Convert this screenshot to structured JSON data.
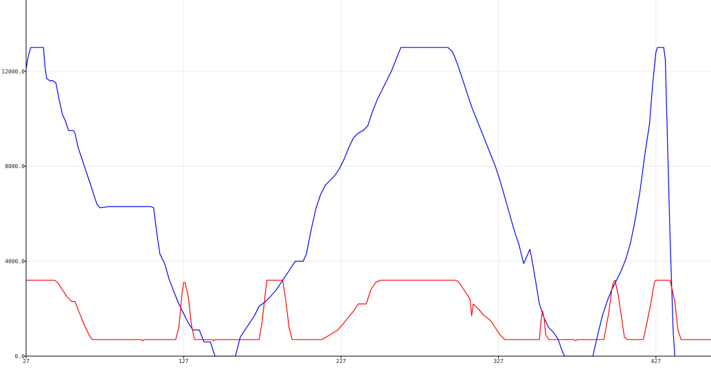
{
  "app": {
    "background": "#ffffff",
    "axis_color": "#000000",
    "grid_color": "#ececec"
  },
  "chart_data": {
    "type": "line",
    "title": "",
    "xlabel": "",
    "ylabel": "",
    "grid": true,
    "legend": "none",
    "xlim": [
      27,
      462
    ],
    "ylim": [
      0,
      15000
    ],
    "x_ticks": [
      27,
      127,
      227,
      327,
      427
    ],
    "x_tick_labels": [
      "27",
      "127",
      "227",
      "327",
      "427"
    ],
    "y_ticks": [
      0,
      4000,
      8000,
      12000
    ],
    "y_tick_labels": [
      "0.0",
      "4000.0",
      "8000.0",
      "12000.0"
    ],
    "series": [
      {
        "color": "#0000ff",
        "points": [
          [
            27,
            12100
          ],
          [
            28,
            12500
          ],
          [
            29,
            12800
          ],
          [
            30,
            13000
          ],
          [
            33,
            13000
          ],
          [
            38,
            13000
          ],
          [
            39,
            12200
          ],
          [
            40,
            11700
          ],
          [
            42,
            11600
          ],
          [
            44,
            11600
          ],
          [
            46,
            11500
          ],
          [
            48,
            10800
          ],
          [
            50,
            10200
          ],
          [
            52,
            9900
          ],
          [
            54,
            9500
          ],
          [
            57,
            9500
          ],
          [
            58,
            9400
          ],
          [
            60,
            8800
          ],
          [
            63,
            8200
          ],
          [
            66,
            7600
          ],
          [
            69,
            7000
          ],
          [
            72,
            6400
          ],
          [
            74,
            6250
          ],
          [
            80,
            6300
          ],
          [
            90,
            6300
          ],
          [
            100,
            6300
          ],
          [
            106,
            6300
          ],
          [
            108,
            6250
          ],
          [
            110,
            5200
          ],
          [
            112,
            4300
          ],
          [
            115,
            3900
          ],
          [
            118,
            3200
          ],
          [
            121,
            2700
          ],
          [
            124,
            2200
          ],
          [
            127,
            1800
          ],
          [
            130,
            1400
          ],
          [
            133,
            1100
          ],
          [
            137,
            1100
          ],
          [
            140,
            600
          ],
          [
            144,
            600
          ],
          [
            147,
            0
          ],
          [
            160,
            0
          ],
          [
            163,
            800
          ],
          [
            166,
            1100
          ],
          [
            169,
            1400
          ],
          [
            172,
            1700
          ],
          [
            175,
            2100
          ],
          [
            179,
            2300
          ],
          [
            182,
            2500
          ],
          [
            186,
            2800
          ],
          [
            190,
            3200
          ],
          [
            194,
            3600
          ],
          [
            198,
            4000
          ],
          [
            203,
            4000
          ],
          [
            205,
            4300
          ],
          [
            208,
            5300
          ],
          [
            211,
            6200
          ],
          [
            214,
            6800
          ],
          [
            217,
            7200
          ],
          [
            220,
            7400
          ],
          [
            223,
            7600
          ],
          [
            226,
            7900
          ],
          [
            229,
            8300
          ],
          [
            232,
            8800
          ],
          [
            235,
            9200
          ],
          [
            238,
            9400
          ],
          [
            241,
            9500
          ],
          [
            244,
            9700
          ],
          [
            247,
            10300
          ],
          [
            250,
            10800
          ],
          [
            253,
            11200
          ],
          [
            256,
            11600
          ],
          [
            259,
            12000
          ],
          [
            262,
            12500
          ],
          [
            265,
            13000
          ],
          [
            275,
            13000
          ],
          [
            285,
            13000
          ],
          [
            295,
            13000
          ],
          [
            298,
            12800
          ],
          [
            301,
            12300
          ],
          [
            304,
            11700
          ],
          [
            307,
            11100
          ],
          [
            310,
            10500
          ],
          [
            313,
            10000
          ],
          [
            316,
            9500
          ],
          [
            319,
            9000
          ],
          [
            322,
            8500
          ],
          [
            325,
            8000
          ],
          [
            328,
            7400
          ],
          [
            331,
            6700
          ],
          [
            334,
            6000
          ],
          [
            337,
            5300
          ],
          [
            340,
            4700
          ],
          [
            343,
            3900
          ],
          [
            345,
            4200
          ],
          [
            347,
            4500
          ],
          [
            349,
            3800
          ],
          [
            351,
            3000
          ],
          [
            353,
            2200
          ],
          [
            356,
            1600
          ],
          [
            359,
            1200
          ],
          [
            362,
            1000
          ],
          [
            365,
            700
          ],
          [
            367,
            300
          ],
          [
            369,
            0
          ],
          [
            387,
            0
          ],
          [
            390,
            900
          ],
          [
            393,
            1700
          ],
          [
            396,
            2300
          ],
          [
            399,
            2800
          ],
          [
            402,
            3200
          ],
          [
            405,
            3600
          ],
          [
            408,
            4100
          ],
          [
            411,
            4800
          ],
          [
            414,
            5800
          ],
          [
            417,
            7000
          ],
          [
            420,
            8500
          ],
          [
            423,
            9800
          ],
          [
            425,
            11500
          ],
          [
            427,
            12800
          ],
          [
            428,
            13000
          ],
          [
            432,
            13000
          ],
          [
            433,
            12500
          ],
          [
            434,
            10000
          ],
          [
            436,
            5000
          ],
          [
            438,
            1000
          ],
          [
            439,
            0
          ]
        ]
      },
      {
        "color": "#ff0000",
        "points": [
          [
            27,
            3200
          ],
          [
            40,
            3200
          ],
          [
            45,
            3200
          ],
          [
            47,
            3100
          ],
          [
            50,
            2800
          ],
          [
            53,
            2500
          ],
          [
            56,
            2300
          ],
          [
            58,
            2300
          ],
          [
            61,
            1800
          ],
          [
            64,
            1300
          ],
          [
            67,
            900
          ],
          [
            69,
            700
          ],
          [
            80,
            700
          ],
          [
            95,
            700
          ],
          [
            100,
            700
          ],
          [
            101,
            650
          ],
          [
            102,
            700
          ],
          [
            115,
            700
          ],
          [
            122,
            700
          ],
          [
            124,
            1200
          ],
          [
            126,
            2600
          ],
          [
            127,
            3100
          ],
          [
            128,
            3100
          ],
          [
            130,
            2500
          ],
          [
            132,
            1300
          ],
          [
            134,
            700
          ],
          [
            145,
            700
          ],
          [
            146,
            650
          ],
          [
            147,
            700
          ],
          [
            160,
            700
          ],
          [
            175,
            700
          ],
          [
            177,
            1500
          ],
          [
            179,
            2700
          ],
          [
            180,
            3200
          ],
          [
            190,
            3200
          ],
          [
            192,
            2300
          ],
          [
            194,
            1200
          ],
          [
            196,
            700
          ],
          [
            200,
            700
          ],
          [
            210,
            700
          ],
          [
            215,
            700
          ],
          [
            220,
            900
          ],
          [
            225,
            1100
          ],
          [
            230,
            1500
          ],
          [
            235,
            1900
          ],
          [
            238,
            2200
          ],
          [
            243,
            2200
          ],
          [
            246,
            2800
          ],
          [
            249,
            3100
          ],
          [
            252,
            3200
          ],
          [
            265,
            3200
          ],
          [
            280,
            3200
          ],
          [
            300,
            3200
          ],
          [
            302,
            3100
          ],
          [
            306,
            2700
          ],
          [
            309,
            2400
          ],
          [
            310,
            1700
          ],
          [
            311,
            2200
          ],
          [
            314,
            2000
          ],
          [
            318,
            1700
          ],
          [
            322,
            1500
          ],
          [
            326,
            1100
          ],
          [
            328,
            900
          ],
          [
            331,
            700
          ],
          [
            340,
            700
          ],
          [
            350,
            700
          ],
          [
            353,
            700
          ],
          [
            354,
            1500
          ],
          [
            355,
            1900
          ],
          [
            356,
            1600
          ],
          [
            357,
            900
          ],
          [
            359,
            700
          ],
          [
            375,
            700
          ],
          [
            376,
            650
          ],
          [
            377,
            700
          ],
          [
            394,
            700
          ],
          [
            397,
            1800
          ],
          [
            399,
            2800
          ],
          [
            400,
            3100
          ],
          [
            401,
            3200
          ],
          [
            403,
            2600
          ],
          [
            405,
            1700
          ],
          [
            407,
            800
          ],
          [
            409,
            700
          ],
          [
            419,
            700
          ],
          [
            421,
            1300
          ],
          [
            424,
            2300
          ],
          [
            426,
            3100
          ],
          [
            427,
            3200
          ],
          [
            436,
            3200
          ],
          [
            439,
            2300
          ],
          [
            441,
            1100
          ],
          [
            443,
            700
          ],
          [
            450,
            700
          ],
          [
            462,
            700
          ]
        ]
      }
    ]
  }
}
